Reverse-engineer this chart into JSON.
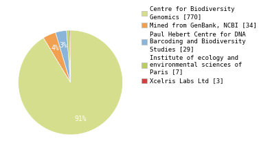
{
  "labels": [
    "Centre for Biodiversity\nGenomics [770]",
    "Mined from GenBank, NCBI [34]",
    "Paul Hebert Centre for DNA\nBarcoding and Biodiversity\nStudies [29]",
    "Institute of ecology and\nenvironmental sciences of\nParis [7]",
    "Xcelris Labs Ltd [3]"
  ],
  "values": [
    770,
    34,
    29,
    7,
    3
  ],
  "colors": [
    "#d4de8c",
    "#f0a050",
    "#8ab4d8",
    "#b8cc60",
    "#d04040"
  ],
  "background_color": "#ffffff",
  "pct_font_size": 7.0,
  "legend_font_size": 6.5
}
